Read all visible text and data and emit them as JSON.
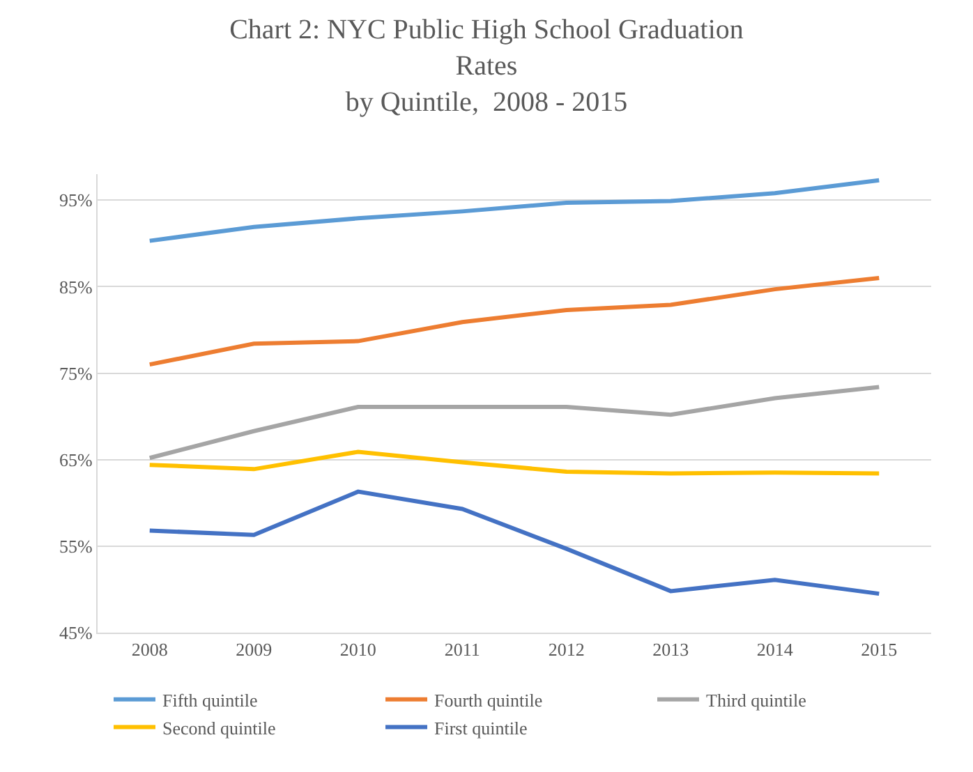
{
  "chart_data": {
    "type": "line",
    "title": "Chart 2: NYC Public High School Graduation\nRates\nby Quintile,  2008 - 2015",
    "categories": [
      "2008",
      "2009",
      "2010",
      "2011",
      "2012",
      "2013",
      "2014",
      "2015"
    ],
    "ylim": [
      45,
      98
    ],
    "yticks": [
      {
        "value": 45,
        "label": "45%"
      },
      {
        "value": 55,
        "label": "55%"
      },
      {
        "value": 65,
        "label": "65%"
      },
      {
        "value": 75,
        "label": "75%"
      },
      {
        "value": 85,
        "label": "85%"
      },
      {
        "value": 95,
        "label": "95%"
      }
    ],
    "grid": "y",
    "legend": "bottom",
    "marker": "none",
    "line_style": "solid",
    "series": [
      {
        "name": "Fifth quintile",
        "color": "#5b9bd5",
        "values": [
          90.3,
          91.9,
          92.9,
          93.7,
          94.7,
          94.9,
          95.8,
          97.3
        ]
      },
      {
        "name": "Fourth quintile",
        "color": "#ed7d31",
        "values": [
          76.0,
          78.4,
          78.7,
          80.9,
          82.3,
          82.9,
          84.7,
          86.0
        ]
      },
      {
        "name": "Third quintile",
        "color": "#a5a5a5",
        "values": [
          65.2,
          68.3,
          71.1,
          71.1,
          71.1,
          70.2,
          72.1,
          73.4
        ]
      },
      {
        "name": "Second quintile",
        "color": "#ffc000",
        "values": [
          64.4,
          63.9,
          65.9,
          64.7,
          63.6,
          63.4,
          63.5,
          63.4
        ]
      },
      {
        "name": "First quintile",
        "color": "#4472c4",
        "values": [
          56.8,
          56.3,
          61.3,
          59.3,
          54.7,
          49.8,
          51.1,
          49.5
        ]
      }
    ]
  }
}
